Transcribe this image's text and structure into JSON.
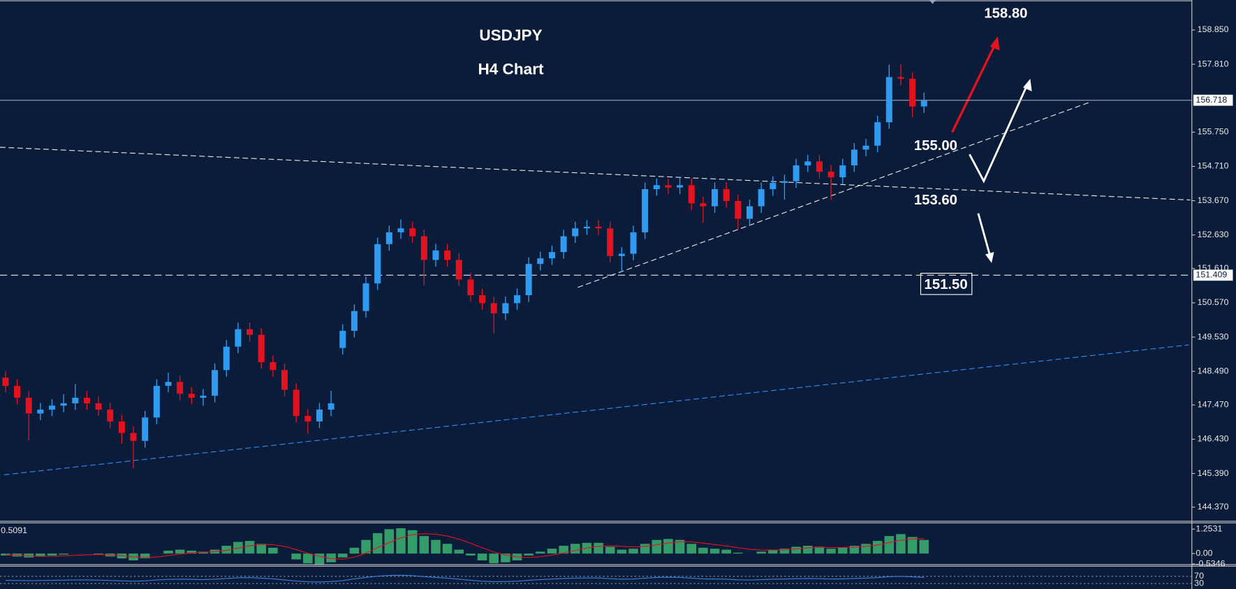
{
  "chart_data": {
    "type": "candlestick",
    "title": "USDJPY",
    "subtitle": "H4 Chart",
    "up_color": "#2f9bf0",
    "down_color": "#e3121f",
    "open": [
      148.3,
      148.05,
      147.69,
      147.21,
      147.33,
      147.45,
      147.52,
      147.69,
      147.52,
      147.33,
      146.97,
      146.62,
      146.38,
      147.09,
      148.05,
      148.17,
      147.81,
      147.69,
      147.75,
      148.53,
      149.24,
      149.77,
      149.6,
      148.77,
      148.53,
      147.93,
      147.14,
      146.97,
      147.33,
      149.2,
      149.72,
      150.32,
      151.16,
      152.35,
      152.71,
      152.83,
      152.59,
      151.87,
      152.16,
      151.87,
      151.28,
      150.8,
      150.56,
      150.25,
      150.56,
      150.8,
      151.75,
      151.92,
      152.11,
      152.59,
      152.83,
      152.88,
      152.83,
      151.99,
      152.06,
      152.71,
      154.02,
      154.14,
      154.07,
      154.14,
      153.59,
      153.5,
      154.02,
      153.66,
      153.12,
      153.5,
      154.02,
      154.21,
      154.26,
      154.74,
      154.86,
      154.55,
      154.38,
      154.74,
      155.22,
      155.34,
      156.05,
      157.42,
      157.37,
      156.53
    ],
    "high": [
      148.5,
      148.25,
      147.89,
      147.53,
      147.65,
      147.8,
      148.1,
      147.89,
      147.72,
      147.53,
      147.17,
      146.82,
      147.29,
      148.25,
      148.45,
      148.37,
      148.01,
      147.95,
      148.73,
      149.44,
      149.97,
      149.97,
      149.8,
      148.97,
      148.73,
      148.13,
      147.34,
      147.53,
      147.9,
      149.92,
      150.52,
      151.36,
      152.55,
      152.91,
      153.1,
      153.03,
      152.79,
      152.36,
      152.36,
      152.07,
      151.48,
      151.0,
      150.76,
      150.76,
      151.0,
      151.95,
      152.12,
      152.31,
      152.79,
      153.03,
      153.08,
      153.08,
      153.03,
      152.26,
      152.91,
      154.22,
      154.34,
      154.34,
      154.4,
      154.34,
      153.79,
      154.22,
      154.22,
      153.86,
      153.7,
      154.22,
      154.41,
      154.46,
      154.94,
      155.06,
      155.06,
      154.75,
      154.94,
      155.42,
      155.54,
      156.25,
      157.8,
      157.82,
      157.57,
      156.95
    ],
    "low": [
      147.85,
      147.49,
      146.4,
      147.01,
      147.13,
      147.25,
      147.32,
      147.32,
      147.13,
      146.77,
      146.3,
      145.55,
      146.18,
      146.89,
      147.85,
      147.61,
      147.49,
      147.45,
      147.55,
      148.33,
      149.04,
      149.4,
      148.57,
      148.33,
      147.73,
      146.94,
      146.6,
      146.77,
      147.13,
      149.0,
      149.52,
      150.12,
      150.96,
      152.15,
      152.51,
      152.39,
      151.1,
      151.67,
      151.67,
      151.08,
      150.6,
      150.36,
      149.65,
      150.05,
      150.36,
      150.6,
      151.55,
      151.72,
      151.91,
      152.39,
      152.63,
      152.63,
      151.79,
      151.52,
      151.86,
      152.51,
      153.82,
      153.87,
      153.87,
      153.39,
      153.0,
      153.3,
      153.46,
      152.8,
      152.92,
      153.3,
      153.82,
      153.7,
      154.06,
      154.54,
      154.35,
      153.7,
      154.18,
      154.54,
      155.02,
      155.14,
      155.85,
      157.17,
      156.2,
      156.33
    ],
    "close": [
      148.05,
      147.69,
      147.21,
      147.33,
      147.45,
      147.52,
      147.69,
      147.52,
      147.33,
      146.97,
      146.62,
      146.38,
      147.09,
      148.05,
      148.17,
      147.81,
      147.69,
      147.75,
      148.53,
      149.24,
      149.77,
      149.6,
      148.77,
      148.53,
      147.93,
      147.14,
      146.97,
      147.33,
      147.52,
      149.72,
      150.32,
      151.16,
      152.35,
      152.71,
      152.83,
      152.59,
      151.87,
      152.16,
      151.87,
      151.28,
      150.8,
      150.56,
      150.25,
      150.56,
      150.8,
      151.75,
      151.92,
      152.11,
      152.59,
      152.83,
      152.88,
      152.83,
      151.99,
      152.06,
      152.71,
      154.02,
      154.14,
      154.07,
      154.14,
      153.59,
      153.5,
      154.02,
      153.66,
      153.12,
      153.5,
      154.02,
      154.21,
      154.26,
      154.74,
      154.86,
      154.55,
      154.38,
      154.74,
      155.22,
      155.34,
      156.05,
      157.42,
      157.37,
      156.53,
      156.7
    ],
    "ylim": [
      143.94,
      159.76
    ],
    "yticks": [
      {
        "value": 158.85,
        "label": "158.850"
      },
      {
        "value": 157.81,
        "label": "157.810"
      },
      {
        "value": 155.75,
        "label": "155.750"
      },
      {
        "value": 154.71,
        "label": "154.710"
      },
      {
        "value": 153.67,
        "label": "153.670"
      },
      {
        "value": 152.63,
        "label": "152.630"
      },
      {
        "value": 151.61,
        "label": "151.610"
      },
      {
        "value": 150.57,
        "label": "150.570"
      },
      {
        "value": 149.53,
        "label": "149.530"
      },
      {
        "value": 148.49,
        "label": "148.490"
      },
      {
        "value": 147.47,
        "label": "147.470"
      },
      {
        "value": 146.43,
        "label": "146.430"
      },
      {
        "value": 145.39,
        "label": "145.390"
      },
      {
        "value": 144.37,
        "label": "144.370"
      }
    ],
    "price_lines": [
      156.718,
      151.409
    ],
    "annotations": [
      "158.80",
      "155.00",
      "153.60",
      "151.50"
    ],
    "macd": {
      "readout": "0.5091",
      "hist_color": "#3cb371",
      "line_color": "#e3121f",
      "histogram": [
        -0.1,
        -0.15,
        -0.2,
        -0.15,
        -0.1,
        -0.05,
        0,
        0,
        -0.05,
        -0.15,
        -0.25,
        -0.35,
        -0.25,
        0,
        0.15,
        0.2,
        0.15,
        0.1,
        0.2,
        0.4,
        0.6,
        0.65,
        0.5,
        0.3,
        0,
        -0.3,
        -0.5,
        -0.55,
        -0.45,
        -0.2,
        0.3,
        0.7,
        1.05,
        1.25,
        1.3,
        1.2,
        0.9,
        0.7,
        0.5,
        0.2,
        -0.1,
        -0.35,
        -0.5,
        -0.45,
        -0.35,
        -0.1,
        0.1,
        0.25,
        0.4,
        0.5,
        0.55,
        0.55,
        0.35,
        0.2,
        0.25,
        0.5,
        0.7,
        0.75,
        0.7,
        0.5,
        0.3,
        0.25,
        0.2,
        0.05,
        0,
        0.1,
        0.2,
        0.25,
        0.35,
        0.4,
        0.35,
        0.25,
        0.3,
        0.4,
        0.5,
        0.65,
        0.9,
        1.0,
        0.85,
        0.7
      ],
      "signal": [
        -0.05,
        -0.08,
        -0.12,
        -0.14,
        -0.14,
        -0.12,
        -0.09,
        -0.06,
        -0.05,
        -0.07,
        -0.11,
        -0.17,
        -0.21,
        -0.18,
        -0.1,
        -0.02,
        0.04,
        0.07,
        0.1,
        0.17,
        0.28,
        0.4,
        0.47,
        0.46,
        0.37,
        0.2,
        0.02,
        -0.14,
        -0.26,
        -0.29,
        -0.18,
        0.03,
        0.3,
        0.57,
        0.8,
        0.97,
        1.02,
        0.99,
        0.9,
        0.74,
        0.53,
        0.3,
        0.08,
        -0.07,
        -0.17,
        -0.2,
        -0.16,
        -0.08,
        0.03,
        0.16,
        0.28,
        0.37,
        0.4,
        0.37,
        0.34,
        0.37,
        0.45,
        0.54,
        0.6,
        0.6,
        0.54,
        0.46,
        0.39,
        0.3,
        0.22,
        0.18,
        0.18,
        0.2,
        0.24,
        0.29,
        0.32,
        0.31,
        0.31,
        0.33,
        0.37,
        0.44,
        0.56,
        0.68,
        0.75,
        0.76
      ],
      "ylim": [
        -0.566,
        1.576
      ],
      "yticks": [
        1.2531,
        {
          "value": 0,
          "label": "0.00"
        },
        -0.5346
      ]
    },
    "rsi": {
      "color": "#3f7fe0",
      "values": [
        48,
        47,
        46,
        47,
        48,
        49,
        50,
        50,
        49,
        47,
        45,
        43,
        45,
        50,
        53,
        54,
        53,
        52,
        54,
        58,
        62,
        63,
        60,
        56,
        50,
        44,
        40,
        39,
        41,
        46,
        56,
        64,
        71,
        75,
        76,
        74,
        68,
        64,
        60,
        54,
        48,
        43,
        40,
        41,
        43,
        48,
        52,
        55,
        58,
        60,
        61,
        61,
        57,
        54,
        55,
        60,
        64,
        65,
        64,
        60,
        56,
        55,
        54,
        51,
        50,
        52,
        54,
        55,
        57,
        58,
        57,
        55,
        56,
        58,
        60,
        63,
        68,
        70,
        67,
        64
      ],
      "ylim": [
        0,
        100
      ],
      "yticks": [
        70,
        30
      ]
    }
  }
}
